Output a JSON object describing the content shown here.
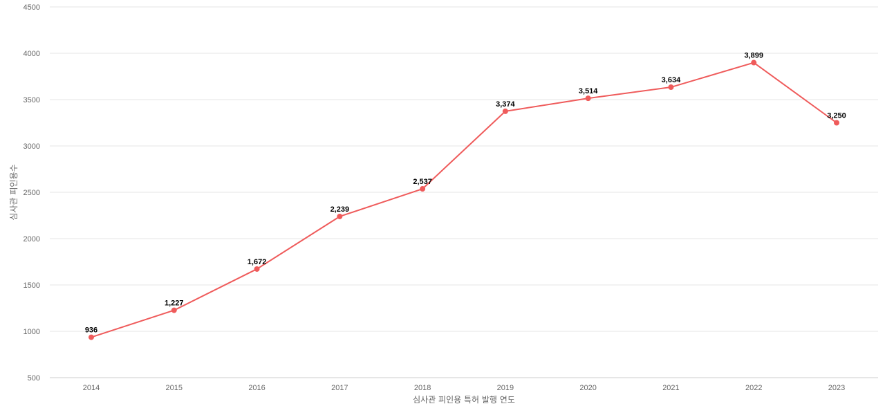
{
  "chart_data": {
    "type": "line",
    "title": "",
    "xlabel": "심사관 피인용 특허 발행 연도",
    "ylabel": "심사관 피인용수",
    "categories": [
      "2014",
      "2015",
      "2016",
      "2017",
      "2018",
      "2019",
      "2020",
      "2021",
      "2022",
      "2023"
    ],
    "series": [
      {
        "values": [
          936,
          1227,
          1672,
          2239,
          2537,
          3374,
          3514,
          3634,
          3899,
          3250
        ],
        "labels": [
          "936",
          "1,227",
          "1,672",
          "2,239",
          "2,537",
          "3,374",
          "3,514",
          "3,634",
          "3,899",
          "3,250"
        ],
        "color": "#ef5b5b"
      }
    ],
    "ylim": [
      500,
      4500
    ],
    "yticks": [
      "500",
      "1000",
      "1500",
      "2000",
      "2500",
      "3000",
      "3500",
      "4000",
      "4500"
    ],
    "grid": true,
    "legend": "none"
  }
}
